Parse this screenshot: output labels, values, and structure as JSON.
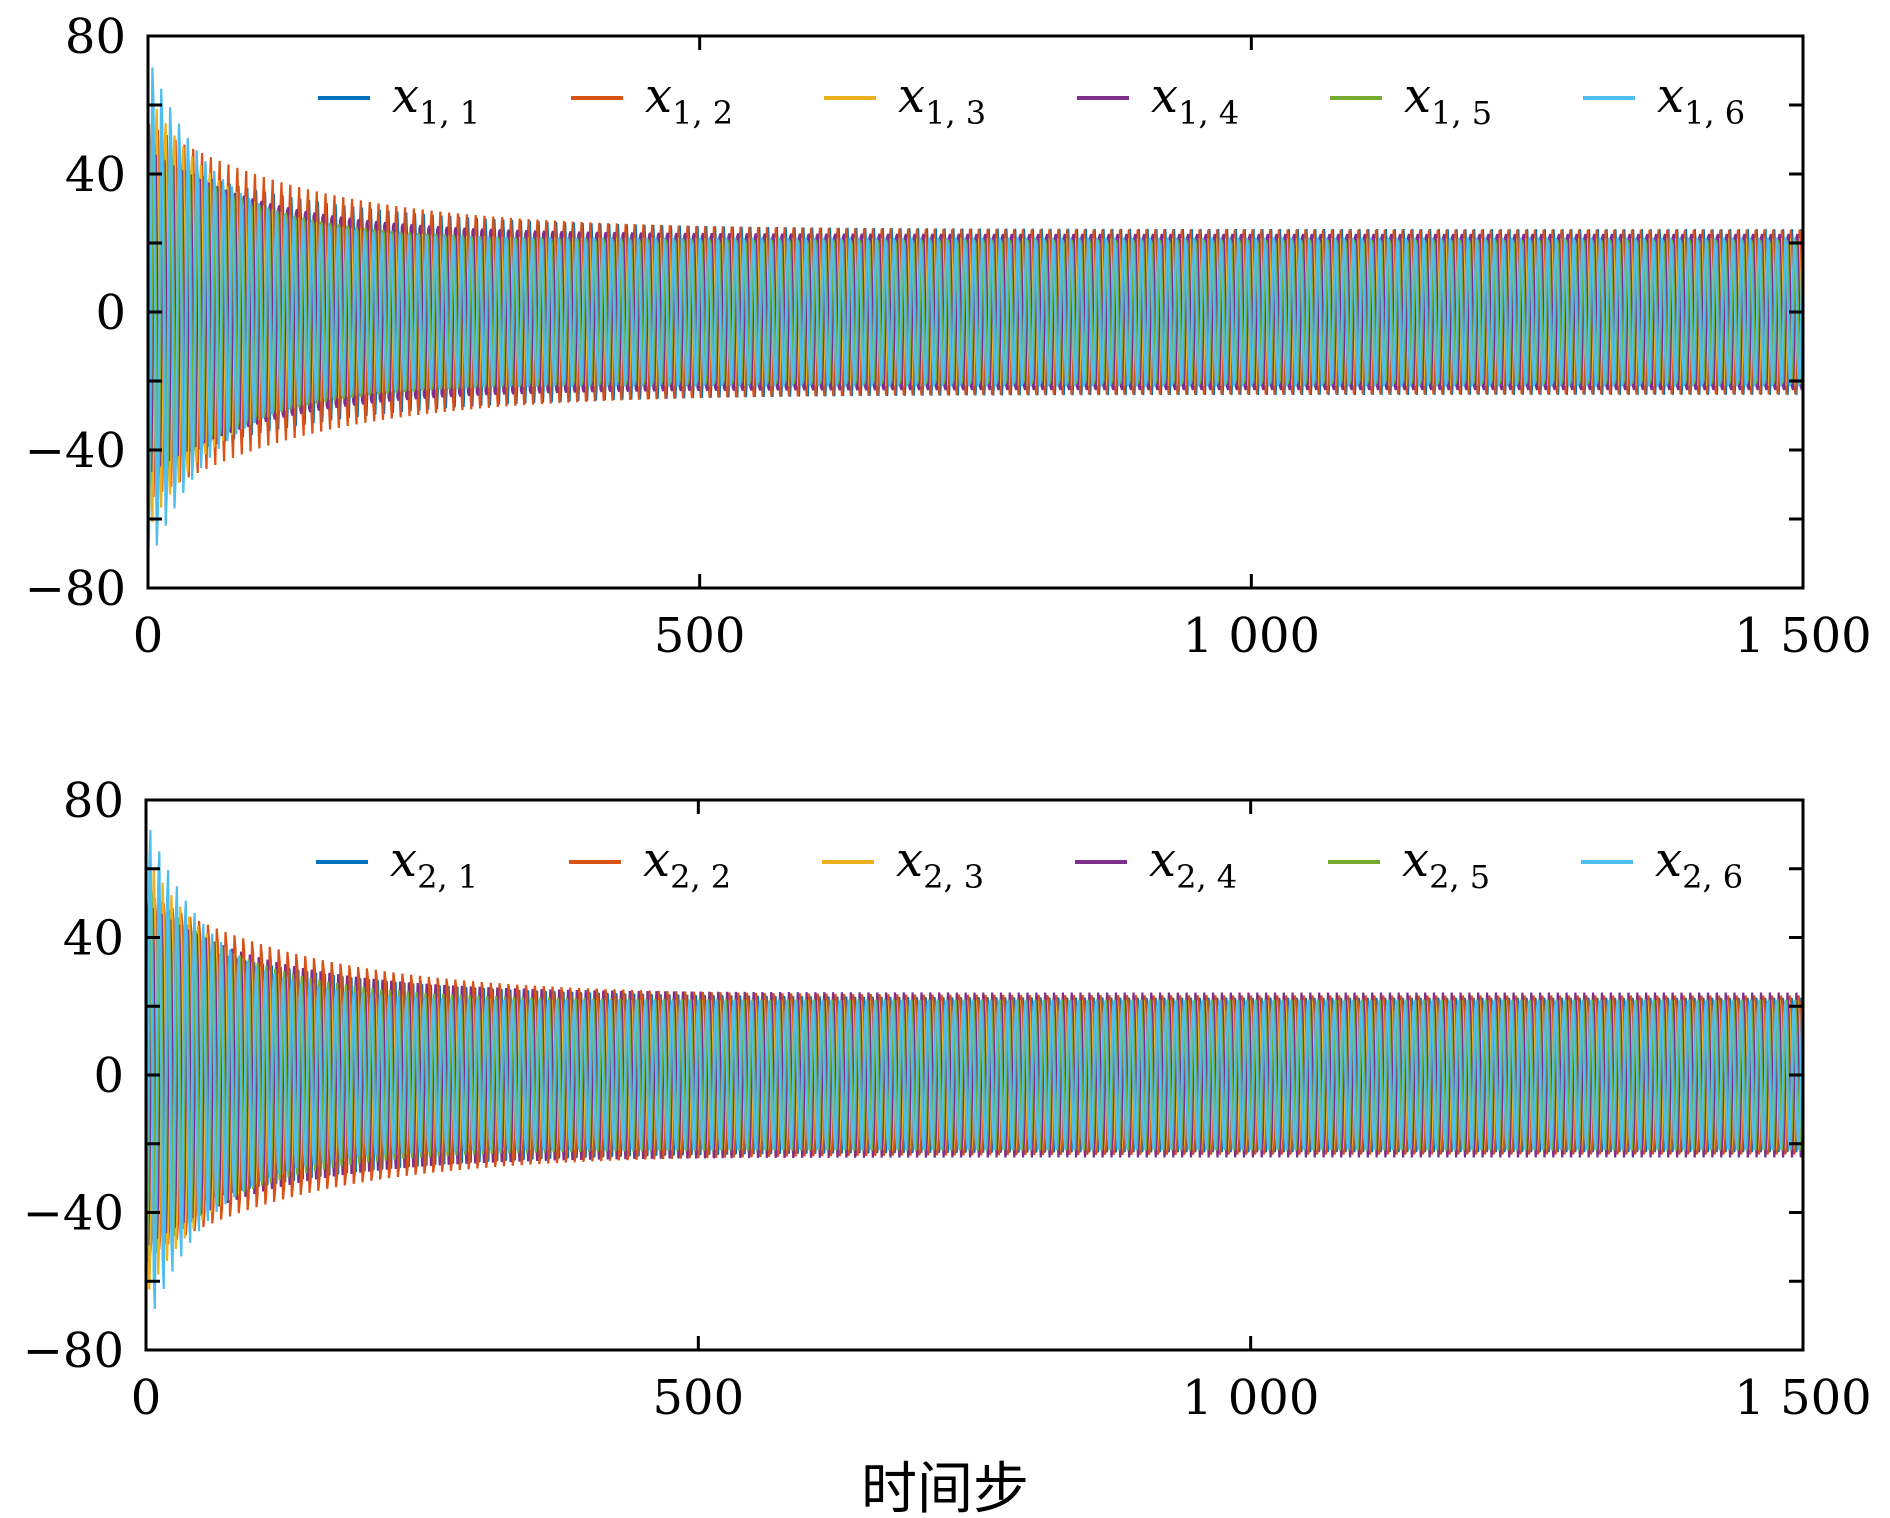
{
  "figure": {
    "xlabel": "时间步"
  },
  "chart_data": [
    {
      "type": "line",
      "xlim": [
        0,
        1500
      ],
      "ylim": [
        -80,
        80
      ],
      "xticks": [
        0,
        500,
        1000,
        1500
      ],
      "xtick_labels": [
        "0",
        "500",
        "1 000",
        "1 500"
      ],
      "yticks": [
        80,
        40,
        0,
        -40,
        -80
      ],
      "ytick_labels": [
        "80",
        "40",
        "0",
        "−40",
        "−80"
      ],
      "xlabel": "",
      "ylabel": "",
      "grid": false,
      "legend_position": "top",
      "series": [
        {
          "name": "x1,1",
          "var": "x",
          "sub": "1, 1",
          "color": "#0072BD",
          "a0": 45,
          "a_inf": 24,
          "tau": 160,
          "phase": 0.0
        },
        {
          "name": "x1,2",
          "var": "x",
          "sub": "1, 2",
          "color": "#D95319",
          "a0": 55,
          "a_inf": 24,
          "tau": 150,
          "phase": 0.9
        },
        {
          "name": "x1,3",
          "var": "x",
          "sub": "1, 3",
          "color": "#EDB120",
          "a0": 65,
          "a_inf": 22,
          "tau": 70,
          "phase": 1.8
        },
        {
          "name": "x1,4",
          "var": "x",
          "sub": "1, 4",
          "color": "#7E2F8E",
          "a0": 50,
          "a_inf": 24,
          "tau": 110,
          "phase": 2.7
        },
        {
          "name": "x1,5",
          "var": "x",
          "sub": "1, 5",
          "color": "#77AC30",
          "a0": 55,
          "a_inf": 22,
          "tau": 90,
          "phase": 3.6
        },
        {
          "name": "x1,6",
          "var": "x",
          "sub": "1, 6",
          "color": "#4DBEEE",
          "a0": 76,
          "a_inf": 22,
          "tau": 60,
          "phase": 4.5
        }
      ],
      "period": 8
    },
    {
      "type": "line",
      "xlim": [
        0,
        1500
      ],
      "ylim": [
        -80,
        80
      ],
      "xticks": [
        0,
        500,
        1000,
        1500
      ],
      "xtick_labels": [
        "0",
        "500",
        "1 000",
        "1 500"
      ],
      "yticks": [
        80,
        40,
        0,
        -40,
        -80
      ],
      "ytick_labels": [
        "80",
        "40",
        "0",
        "−40",
        "−80"
      ],
      "xlabel": "时间步",
      "ylabel": "",
      "grid": false,
      "legend_position": "top",
      "series": [
        {
          "name": "x2,1",
          "var": "x",
          "sub": "2, 1",
          "color": "#0072BD",
          "a0": 45,
          "a_inf": 24,
          "tau": 160,
          "phase": 0.4
        },
        {
          "name": "x2,2",
          "var": "x",
          "sub": "2, 2",
          "color": "#D95319",
          "a0": 55,
          "a_inf": 24,
          "tau": 150,
          "phase": 1.3
        },
        {
          "name": "x2,3",
          "var": "x",
          "sub": "2, 3",
          "color": "#EDB120",
          "a0": 65,
          "a_inf": 22,
          "tau": 70,
          "phase": 2.2
        },
        {
          "name": "x2,4",
          "var": "x",
          "sub": "2, 4",
          "color": "#7E2F8E",
          "a0": 50,
          "a_inf": 24,
          "tau": 110,
          "phase": 3.1
        },
        {
          "name": "x2,5",
          "var": "x",
          "sub": "2, 5",
          "color": "#77AC30",
          "a0": 55,
          "a_inf": 22,
          "tau": 90,
          "phase": 4.0
        },
        {
          "name": "x2,6",
          "var": "x",
          "sub": "2, 6",
          "color": "#4DBEEE",
          "a0": 76,
          "a_inf": 22,
          "tau": 60,
          "phase": 4.9
        }
      ],
      "period": 8
    }
  ]
}
